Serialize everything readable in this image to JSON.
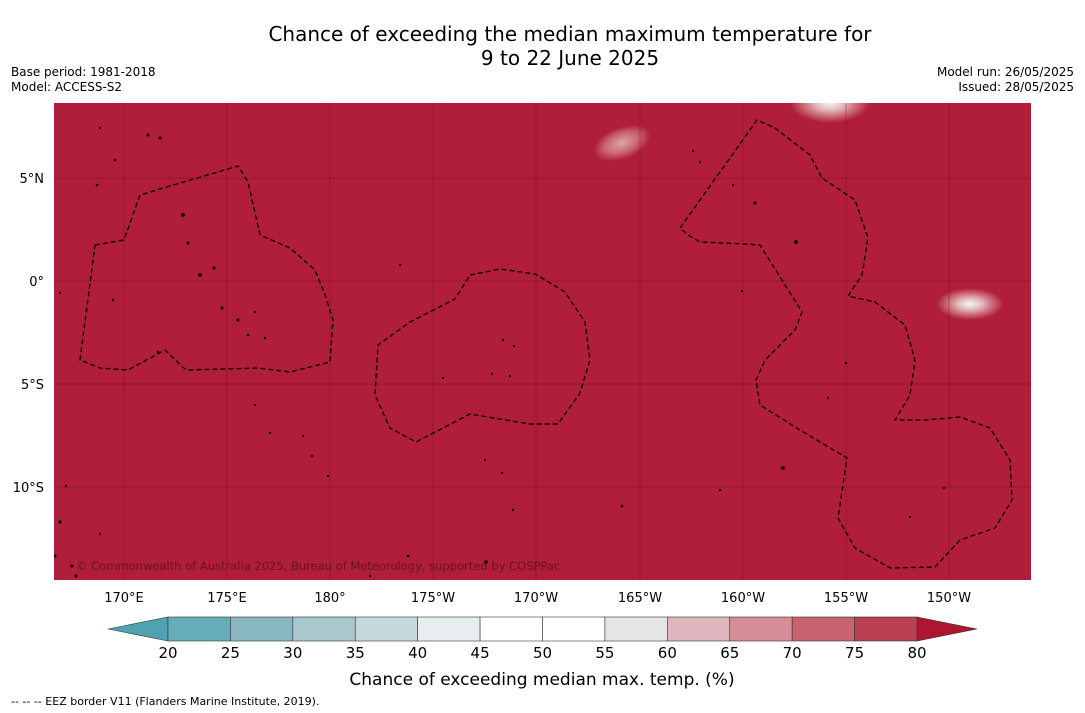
{
  "title": {
    "line1": "Chance of exceeding the median maximum temperature for",
    "line2": "9 to 22 June 2025"
  },
  "meta_left": {
    "base_period": "Base period: 1981-2018",
    "model": "Model: ACCESS-S2"
  },
  "meta_right": {
    "model_run": "Model run: 26/05/2025",
    "issued": "Issued: 28/05/2025"
  },
  "map": {
    "fill_color": "#b01e39",
    "lat_labels": [
      "5°N",
      "0°",
      "5°S",
      "10°S"
    ],
    "lon_labels": [
      "170°E",
      "175°E",
      "180°",
      "175°W",
      "170°W",
      "165°W",
      "160°W",
      "155°W",
      "150°W"
    ],
    "copyright": "© Commonwealth of Australia 2025, Bureau of Meteorology, supported by COSPPac"
  },
  "colorbar": {
    "ticks": [
      "20",
      "25",
      "30",
      "35",
      "40",
      "45",
      "50",
      "55",
      "60",
      "65",
      "70",
      "75",
      "80"
    ],
    "colors": [
      "#66adba",
      "#88b7c2",
      "#a8c8cd",
      "#c5d9dc",
      "#e8eef0",
      "#ffffff",
      "#ffffff",
      "#e6e6e6",
      "#dfb6bd",
      "#d58e97",
      "#c8636f",
      "#b94152"
    ],
    "under_color": "#4fa3b1",
    "over_color": "#ac1633",
    "label": "Chance of exceeding median max. temp. (%)"
  },
  "footer": {
    "legend": "--  --  -- EEZ border V11 (Flanders Marine Institute, 2019)."
  }
}
